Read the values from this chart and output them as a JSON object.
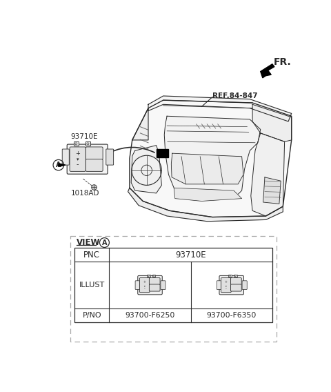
{
  "bg_color": "#ffffff",
  "fr_label": "FR.",
  "ref_label": "REF.84-847",
  "part_93710E": "93710E",
  "part_1018AD": "1018AD",
  "view_label": "VIEW",
  "pnc_label": "PNC",
  "pnc_value": "93710E",
  "illust_label": "ILLUST",
  "pno_label": "P/NO",
  "pno_left": "93700-F6250",
  "pno_right": "93700-F6350",
  "lc": "#2a2a2a",
  "lc_light": "#666666",
  "dc": "#999999"
}
